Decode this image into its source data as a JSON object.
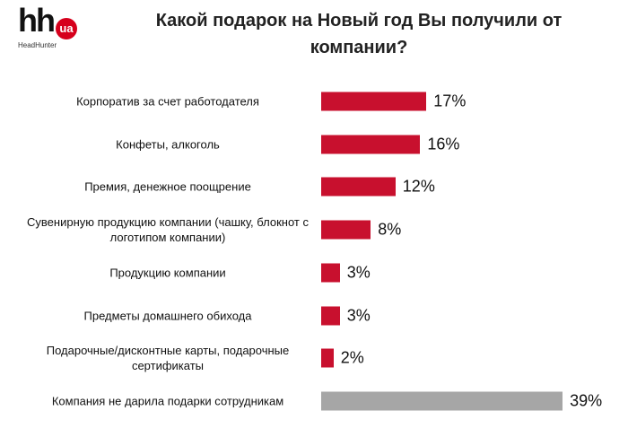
{
  "logo": {
    "text": "hh",
    "badge": "ua",
    "subtitle": "HeadHunter"
  },
  "chart_data": {
    "type": "bar",
    "orientation": "horizontal",
    "title": "Какой подарок на Новый год Вы получили от компании?",
    "categories": [
      "Корпоратив за счет работодателя",
      "Конфеты, алкоголь",
      "Премия, денежное поощрение",
      "Сувенирную продукцию компании (чашку, блокнот с логотипом компании)",
      "Продукцию компании",
      "Предметы домашнего обихода",
      "Подарочные/дисконтные карты, подарочные сертификаты",
      "Компания не дарила подарки сотрудникам"
    ],
    "values": [
      17,
      16,
      12,
      8,
      3,
      3,
      2,
      39
    ],
    "value_labels": [
      "17%",
      "16%",
      "12%",
      "8%",
      "3%",
      "3%",
      "2%",
      "39%"
    ],
    "colors": [
      "#c8102e",
      "#c8102e",
      "#c8102e",
      "#c8102e",
      "#c8102e",
      "#c8102e",
      "#c8102e",
      "#a6a6a6"
    ]
  }
}
